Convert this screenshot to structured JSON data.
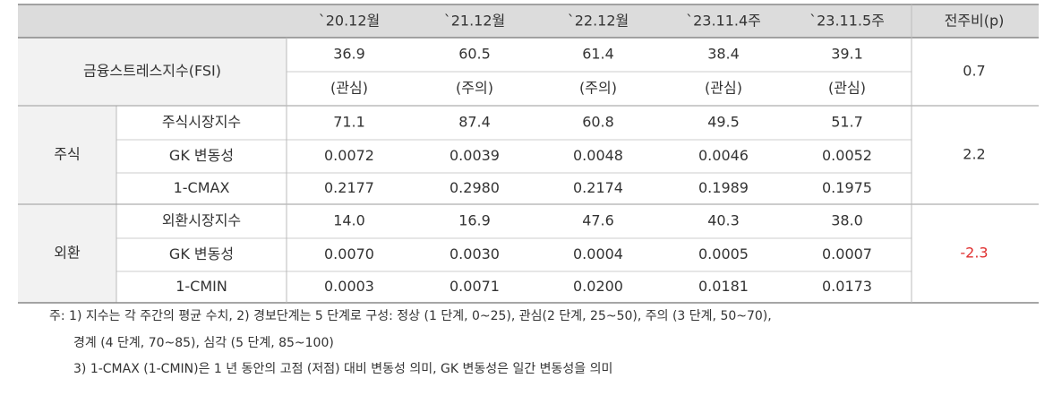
{
  "header": [
    "`20.12월",
    "`21.12월",
    "`22.12월",
    "`23.11.4주",
    "`23.11.5주",
    "전주비(p)"
  ],
  "fsi": {
    "label": "금융스트레스지수(FSI)",
    "values": [
      "36.9",
      "60.5",
      "61.4",
      "38.4",
      "39.1"
    ],
    "levels": [
      "(관심)",
      "(주의)",
      "(주의)",
      "(관심)",
      "(관심)"
    ],
    "change": "0.7"
  },
  "groups": [
    {
      "label": "주식",
      "change": "2.2",
      "rows": [
        {
          "label": "주식시장지수",
          "values": [
            "71.1",
            "87.4",
            "60.8",
            "49.5",
            "51.7"
          ]
        },
        {
          "label": "GK 변동성",
          "values": [
            "0.0072",
            "0.0039",
            "0.0048",
            "0.0046",
            "0.0052"
          ]
        },
        {
          "label": "1-CMAX",
          "values": [
            "0.2177",
            "0.2980",
            "0.2174",
            "0.1989",
            "0.1975"
          ]
        }
      ]
    },
    {
      "label": "외환",
      "change": "-2.3",
      "rows": [
        {
          "label": "외환시장지수",
          "values": [
            "14.0",
            "16.9",
            "47.6",
            "40.3",
            "38.0"
          ]
        },
        {
          "label": "GK 변동성",
          "values": [
            "0.0070",
            "0.0030",
            "0.0004",
            "0.0005",
            "0.0007"
          ]
        },
        {
          "label": "1-CMIN",
          "values": [
            "0.0003",
            "0.0071",
            "0.0200",
            "0.0181",
            "0.0173"
          ]
        }
      ]
    }
  ],
  "notes": [
    "주: 1) 지수는 각 주간의 평균 수치, 2) 경보단계는 5 단계로 구성: 정상 (1 단계, 0~25), 관심(2 단계, 25~50), 주의 (3 단계, 50~70),",
    "경계 (4 단계, 70~85), 심각 (5 단계, 85~100)",
    "3) 1-CMAX (1-CMIN)은 1 년 동안의 고점 (저점) 대비 변동성 의미, GK 변동성은 일간 변동성을 의미"
  ]
}
